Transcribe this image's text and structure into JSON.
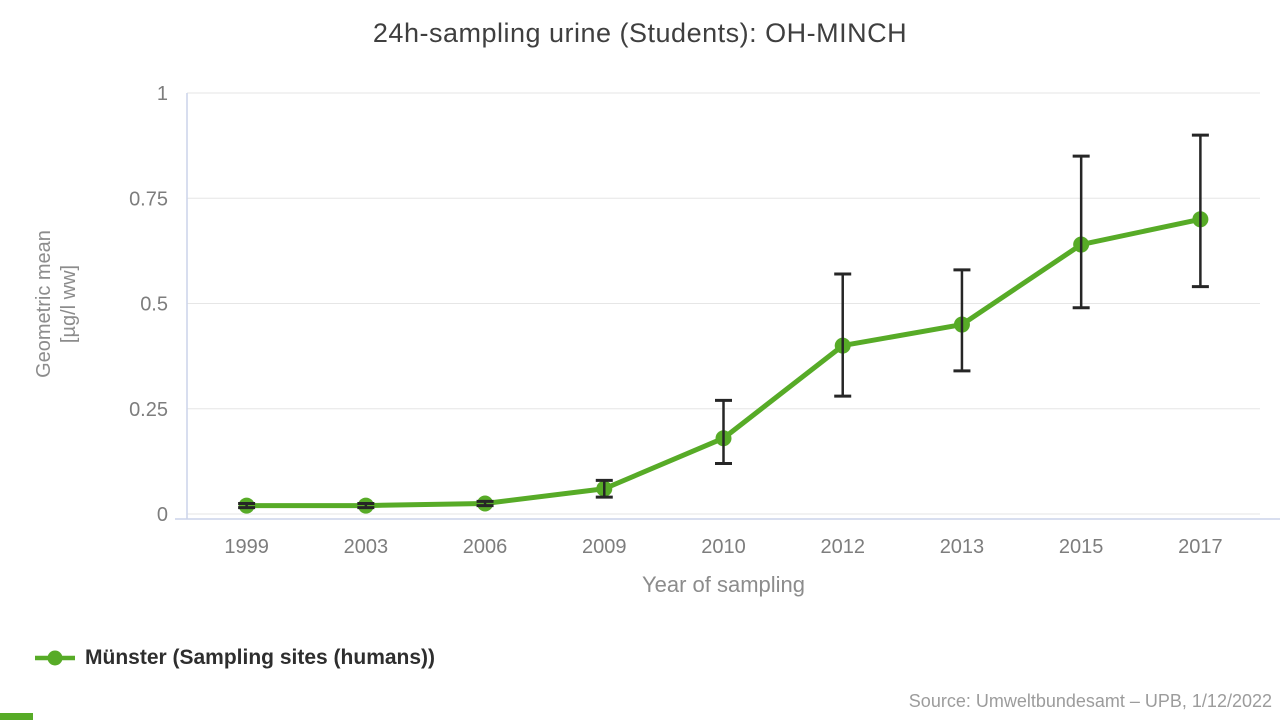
{
  "chart_data": {
    "type": "line",
    "title": "24h-sampling urine (Students): OH-MINCH",
    "xlabel": "Year of sampling",
    "ylabel": "Geometric mean [µg/l ww]",
    "ylabel_lines": [
      "Geometric mean",
      "[µg/l ww]"
    ],
    "categories": [
      "1999",
      "2003",
      "2006",
      "2009",
      "2010",
      "2012",
      "2013",
      "2015",
      "2017"
    ],
    "series": [
      {
        "name": "Münster (Sampling sites (humans))",
        "values": [
          0.02,
          0.02,
          0.025,
          0.06,
          0.18,
          0.4,
          0.45,
          0.64,
          0.7
        ],
        "error_low": [
          0.015,
          0.015,
          0.02,
          0.04,
          0.12,
          0.28,
          0.34,
          0.49,
          0.54
        ],
        "error_high": [
          0.025,
          0.025,
          0.03,
          0.08,
          0.27,
          0.57,
          0.58,
          0.85,
          0.9
        ],
        "color": "#57ab27"
      }
    ],
    "ylim": [
      0,
      1
    ],
    "yticks": [
      0,
      0.25,
      0.5,
      0.75,
      1
    ],
    "grid": true,
    "error_bars": true,
    "legend_position": "bottom-left"
  },
  "legend": {
    "items": [
      {
        "label": "Münster (Sampling sites (humans))",
        "color": "#57ab27"
      }
    ]
  },
  "source": "Source: Umweltbundesamt – UPB, 1/12/2022",
  "colors": {
    "series_green": "#57ab27",
    "error_bar": "#262626",
    "gridline": "#e6e6e6",
    "axis_line": "#ccd4ea",
    "title_text": "#3f3f3f",
    "tick_text": "#7d7d7d",
    "axis_title_text": "#8c8c8c",
    "legend_text": "#2e2e2e",
    "source_text": "#9c9c9c",
    "background": "#ffffff"
  }
}
